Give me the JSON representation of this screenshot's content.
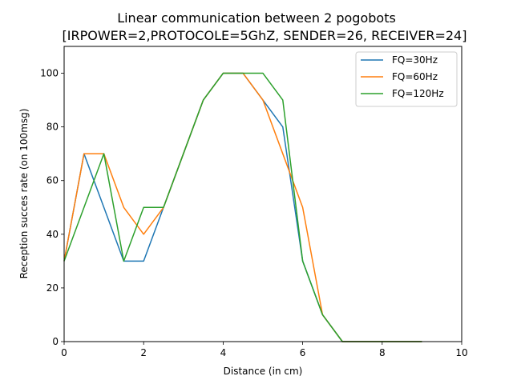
{
  "chart_data": {
    "type": "line",
    "title": "Linear communication between 2 pogobots",
    "subtitle": "[IRPOWER=2,PROTOCOLE=5GhZ, SENDER=26, RECEIVER=24]",
    "xlabel": "Distance (in cm)",
    "ylabel": "Reception succes rate (on 100msg)",
    "xlim": [
      0,
      10
    ],
    "ylim": [
      0,
      110
    ],
    "xticks": [
      0,
      2,
      4,
      6,
      8,
      10
    ],
    "yticks": [
      0,
      20,
      40,
      60,
      80,
      100
    ],
    "grid": false,
    "legend_position": "top-right",
    "series": [
      {
        "name": "FQ=30Hz",
        "color": "#1f77b4",
        "x": [
          0,
          0.5,
          1,
          1.5,
          2,
          2.5,
          3,
          3.5,
          4,
          4.5,
          5,
          5.5,
          6,
          6.5,
          7,
          7.5,
          8,
          8.5,
          9
        ],
        "y": [
          30,
          70,
          50,
          30,
          30,
          50,
          70,
          90,
          100,
          100,
          90,
          80,
          30,
          10,
          0,
          0,
          0,
          0,
          0
        ]
      },
      {
        "name": "FQ=60Hz",
        "color": "#ff7f0e",
        "x": [
          0,
          0.5,
          1,
          1.5,
          2,
          2.5,
          3,
          3.5,
          4,
          4.5,
          5,
          5.5,
          6,
          6.5,
          7,
          7.5,
          8,
          8.5,
          9
        ],
        "y": [
          30,
          70,
          70,
          50,
          40,
          50,
          70,
          90,
          100,
          100,
          90,
          70,
          50,
          10,
          0,
          0,
          0,
          0,
          0
        ]
      },
      {
        "name": "FQ=120Hz",
        "color": "#2ca02c",
        "x": [
          0,
          0.5,
          1,
          1.5,
          2,
          2.5,
          3,
          3.5,
          4,
          4.5,
          5,
          5.5,
          6,
          6.5,
          7,
          7.5,
          8,
          8.5,
          9
        ],
        "y": [
          30,
          50,
          70,
          30,
          50,
          50,
          70,
          90,
          100,
          100,
          100,
          90,
          30,
          10,
          0,
          0,
          0,
          0,
          0
        ]
      }
    ]
  }
}
